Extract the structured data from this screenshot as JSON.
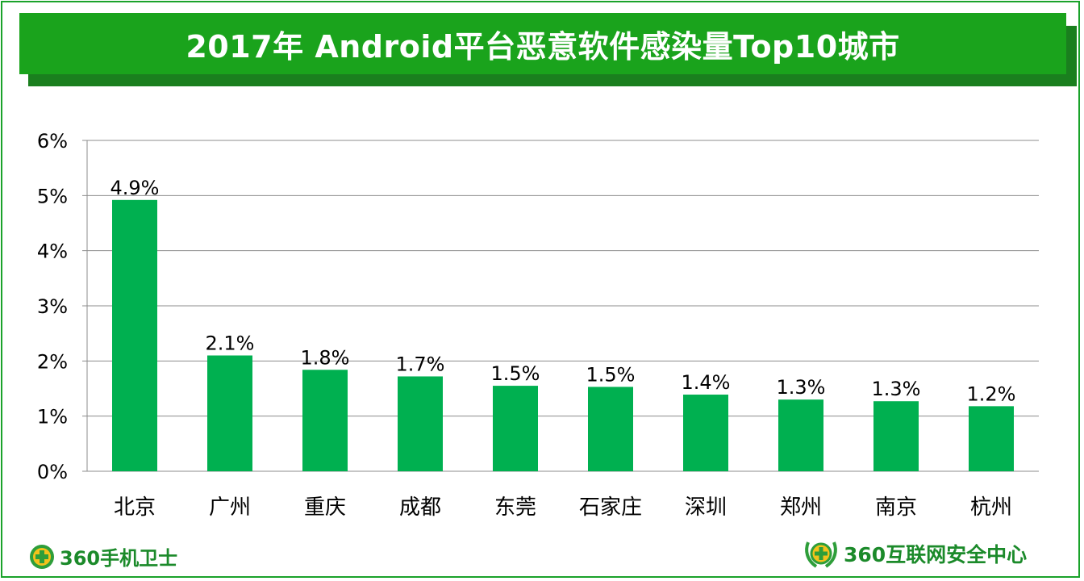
{
  "title": "2017年 Android平台恶意软件感染量Top10城市",
  "footer": {
    "left_brand": "360手机卫士",
    "right_brand": "360互联网安全中心",
    "left_icon": "plus-shield-icon",
    "right_icon": "laurel-shield-icon"
  },
  "colors": {
    "banner": "#1aa31c",
    "banner_shadow": "#1a7f1e",
    "bar": "#00b050",
    "frame": "#1aa22a",
    "logo_text": "#1b8a2a"
  },
  "chart_data": {
    "type": "bar",
    "categories": [
      "北京",
      "广州",
      "重庆",
      "成都",
      "东莞",
      "石家庄",
      "深圳",
      "郑州",
      "南京",
      "杭州"
    ],
    "values": [
      4.9,
      2.1,
      1.8,
      1.7,
      1.5,
      1.5,
      1.4,
      1.3,
      1.3,
      1.2
    ],
    "bar_values": [
      4.92,
      2.1,
      1.84,
      1.72,
      1.55,
      1.53,
      1.39,
      1.3,
      1.27,
      1.18
    ],
    "data_labels": [
      "4.9%",
      "2.1%",
      "1.8%",
      "1.7%",
      "1.5%",
      "1.5%",
      "1.4%",
      "1.3%",
      "1.3%",
      "1.2%"
    ],
    "y_ticks": [
      "0%",
      "1%",
      "2%",
      "3%",
      "4%",
      "5%",
      "6%"
    ],
    "ylim": [
      0,
      6
    ],
    "grid": true,
    "title": "2017年 Android平台恶意软件感染量Top10城市",
    "xlabel": "",
    "ylabel": ""
  }
}
